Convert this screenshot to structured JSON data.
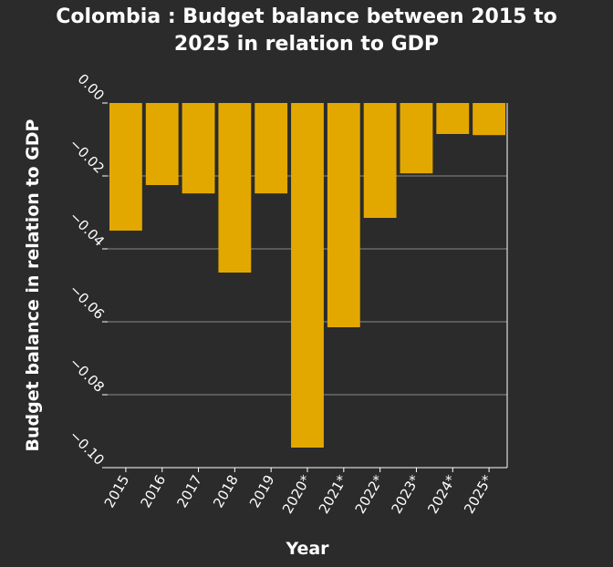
{
  "chart_data": {
    "type": "bar",
    "title_line1": "Colombia : Budget balance between 2015 to",
    "title_line2": "2025 in relation to GDP",
    "xlabel": "Year",
    "ylabel": "Budget balance in relation to GDP",
    "categories": [
      "2015",
      "2016",
      "2017",
      "2018",
      "2019",
      "2020*",
      "2021*",
      "2022*",
      "2023*",
      "2024*",
      "2025*"
    ],
    "values": [
      -0.035,
      -0.0225,
      -0.0248,
      -0.0465,
      -0.0248,
      -0.0945,
      -0.0615,
      -0.0315,
      -0.0193,
      -0.0085,
      -0.0088
    ],
    "ylim": [
      -0.1,
      0.0
    ],
    "yticks": [
      0.0,
      -0.02,
      -0.04,
      -0.06,
      -0.08,
      -0.1
    ],
    "ytick_labels": [
      "0.00",
      "−0.02",
      "−0.04",
      "−0.06",
      "−0.08",
      "−0.10"
    ],
    "grid": true,
    "colors": {
      "background": "#2b2b2b",
      "bar": "#e3a800",
      "text": "#ffffff",
      "grid": "#8a8a8a"
    }
  }
}
